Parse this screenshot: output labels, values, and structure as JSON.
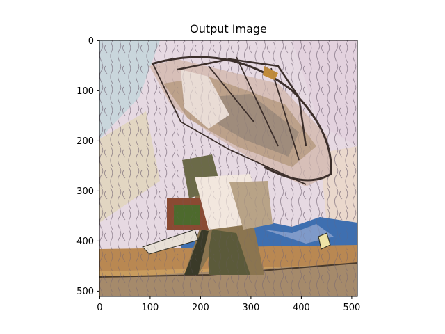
{
  "figure": {
    "title": "Output Image"
  },
  "axes": {
    "xticks": [
      "0",
      "100",
      "200",
      "300",
      "400",
      "500"
    ],
    "yticks": [
      "0",
      "100",
      "200",
      "300",
      "400",
      "500"
    ],
    "x_range": [
      0,
      511
    ],
    "y_range": [
      0,
      511
    ],
    "y_inverted": true
  },
  "image": {
    "subject": "stylized painting of a radio telescope dish antenna on a pedestal",
    "palette": [
      "#e9d8e4",
      "#b9c9d6",
      "#d8c4a0",
      "#8b6a3e",
      "#3f4f2e",
      "#2e5c9a",
      "#f4e7d7"
    ]
  }
}
